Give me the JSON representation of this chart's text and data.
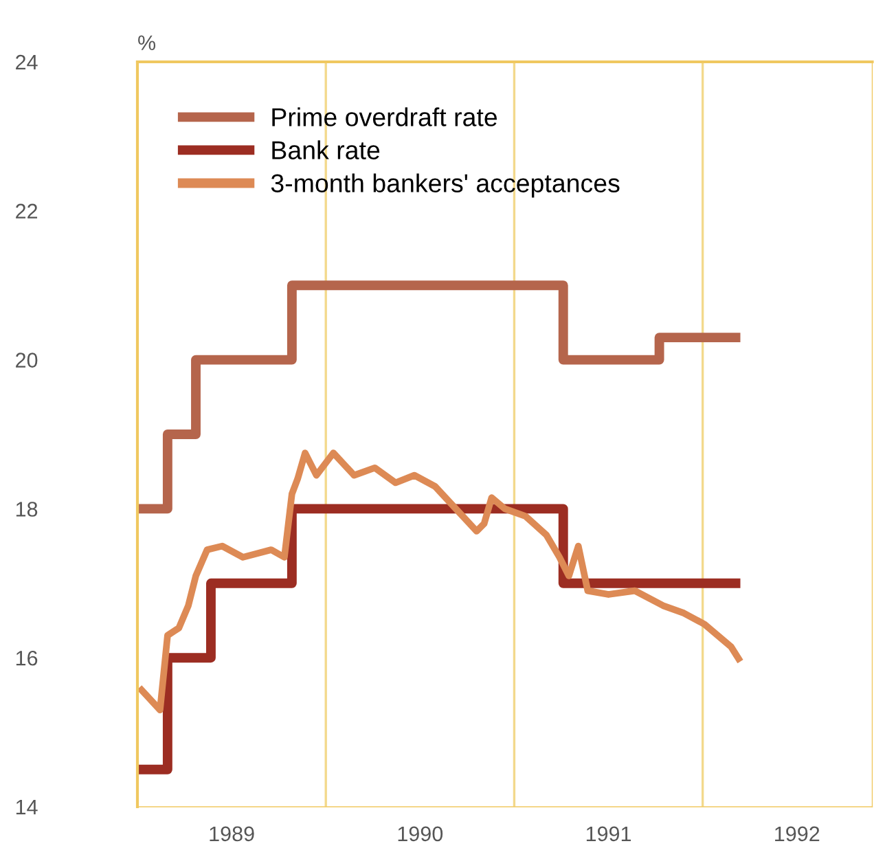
{
  "chart_data": {
    "type": "step",
    "ylabel": "%",
    "xlim": [
      1989.0,
      1992.9
    ],
    "xticks": [
      {
        "value": 1989.5,
        "label": "1989"
      },
      {
        "value": 1990.5,
        "label": "1990"
      },
      {
        "value": 1991.5,
        "label": "1991"
      },
      {
        "value": 1992.5,
        "label": "1992"
      }
    ],
    "ylim": [
      14,
      24
    ],
    "yticks": [
      14,
      16,
      18,
      20,
      22,
      24
    ],
    "grid": false,
    "legend": "top left",
    "ref_lines": [
      {
        "axis": "x",
        "value": 1990,
        "color": "#f3d98c"
      },
      {
        "axis": "x",
        "value": 1991,
        "color": "#f3d98c"
      },
      {
        "axis": "x",
        "value": 1992,
        "color": "#f3d98c"
      }
    ],
    "series": [
      {
        "name": "Prime overdraft rate",
        "color": "#b5654c",
        "x": [
          1989.0,
          1989.16,
          1989.31,
          1989.82,
          1991.26,
          1991.77,
          1992.2
        ],
        "values": [
          18,
          19,
          20,
          21,
          20,
          20.3,
          20.3
        ]
      },
      {
        "name": "Bank rate",
        "color": "#9c2d22",
        "x": [
          1989.0,
          1989.16,
          1989.39,
          1989.82,
          1991.26,
          1992.2
        ],
        "values": [
          14.5,
          16,
          17,
          18,
          17,
          17
        ]
      },
      {
        "name": "3-month bankers' acceptances",
        "type": "line",
        "color": "#dd8a55",
        "x": [
          1989.01,
          1989.12,
          1989.16,
          1989.22,
          1989.27,
          1989.31,
          1989.37,
          1989.45,
          1989.56,
          1989.71,
          1989.78,
          1989.82,
          1989.85,
          1989.89,
          1989.95,
          1990.04,
          1990.15,
          1990.26,
          1990.37,
          1990.47,
          1990.58,
          1990.69,
          1990.8,
          1990.84,
          1990.88,
          1990.95,
          1991.06,
          1991.17,
          1991.24,
          1991.29,
          1991.34,
          1991.39,
          1991.5,
          1991.64,
          1991.79,
          1991.9,
          1992.01,
          1992.08,
          1992.15,
          1992.2
        ],
        "values": [
          15.6,
          15.3,
          16.3,
          16.4,
          16.7,
          17.1,
          17.45,
          17.5,
          17.35,
          17.45,
          17.35,
          18.2,
          18.4,
          18.75,
          18.45,
          18.75,
          18.45,
          18.55,
          18.35,
          18.45,
          18.3,
          18.0,
          17.7,
          17.8,
          18.15,
          18.0,
          17.9,
          17.65,
          17.35,
          17.1,
          17.5,
          16.9,
          16.85,
          16.9,
          16.7,
          16.6,
          16.45,
          16.3,
          16.15,
          15.95
        ]
      }
    ]
  }
}
